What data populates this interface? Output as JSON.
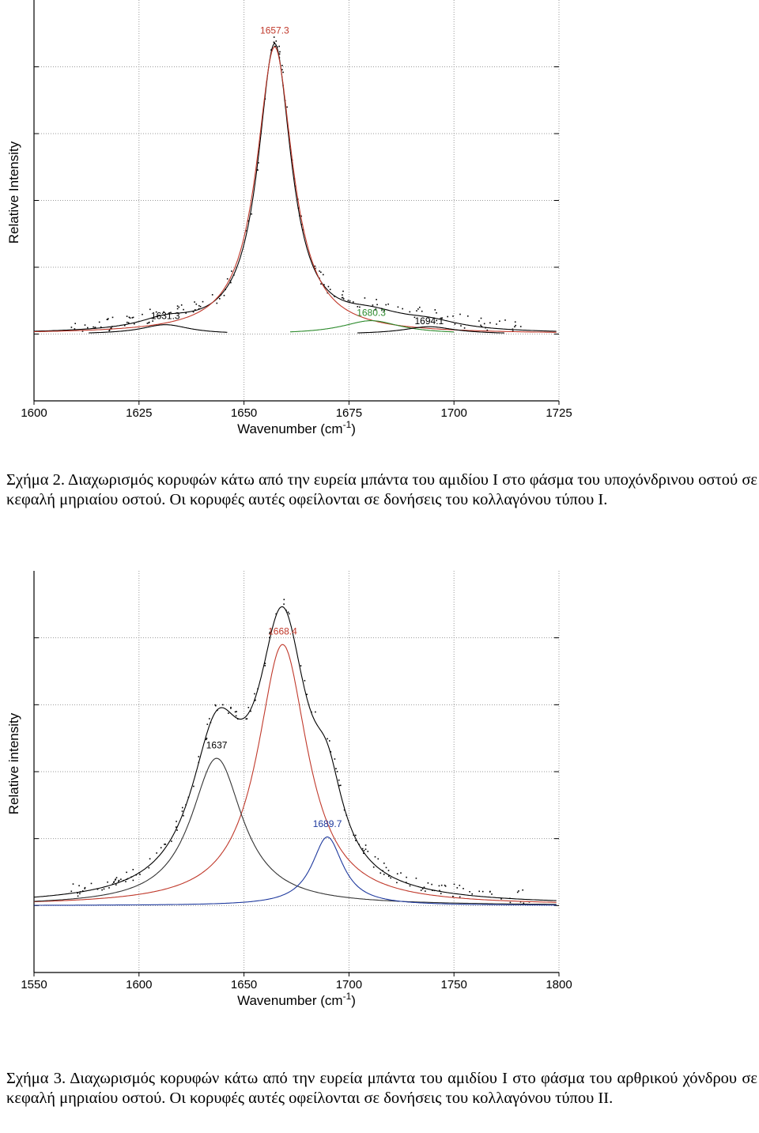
{
  "chart_data": [
    {
      "type": "line",
      "title": "",
      "xlabel": "Wavenumber (cm",
      "xlabel_sup": "-1",
      "xlabel_end": ")",
      "ylabel": "Relative Intensity",
      "xlim": [
        1600,
        1725
      ],
      "ylim": [
        -0.2,
        1.0
      ],
      "xticks": [
        1600,
        1625,
        1650,
        1675,
        1700,
        1725
      ],
      "grid": true,
      "series": [
        {
          "name": "",
          "color": "#000000",
          "role": "sum",
          "peaks": [
            [
              1631.3,
              0.028,
              8.0
            ],
            [
              1657.3,
              0.86,
              4.8
            ],
            [
              1680.3,
              0.04,
              10.0
            ],
            [
              1694.1,
              0.022,
              9.0
            ]
          ],
          "offset": 0.0
        },
        {
          "name": "",
          "color": "#c0392b",
          "role": "component",
          "peaks": [
            [
              1657.3,
              0.86,
              5.2
            ]
          ],
          "offset": 0.0
        },
        {
          "name": "",
          "color": "#000000",
          "role": "component",
          "peaks": [
            [
              1631.3,
              0.028,
              7.0
            ]
          ],
          "range": [
            1613,
            1646
          ]
        },
        {
          "name": "",
          "color": "#2e8b2e",
          "role": "component",
          "peaks": [
            [
              1680.3,
              0.04,
              8.5
            ]
          ],
          "range": [
            1661,
            1700
          ]
        },
        {
          "name": "",
          "color": "#000000",
          "role": "component",
          "peaks": [
            [
              1694.1,
              0.022,
              7.5
            ]
          ],
          "range": [
            1677,
            1712
          ]
        }
      ],
      "annotations": [
        {
          "text": "1657.3",
          "x": 1657.3,
          "y": 0.9,
          "color": "#c0392b"
        },
        {
          "text": "1631.3",
          "x": 1631.3,
          "y": 0.045,
          "color": "#000000"
        },
        {
          "text": "1680.3",
          "x": 1680.3,
          "y": 0.055,
          "color": "#2e8b2e"
        },
        {
          "text": "1694.1",
          "x": 1694.1,
          "y": 0.03,
          "color": "#000000"
        }
      ]
    },
    {
      "type": "line",
      "title": "",
      "xlabel": "Wavenumber (cm",
      "xlabel_sup": "-1",
      "xlabel_end": ")",
      "ylabel": "Relative intensity",
      "xlim": [
        1550,
        1800
      ],
      "ylim": [
        -0.2,
        1.0
      ],
      "xticks": [
        1550,
        1600,
        1650,
        1700,
        1750,
        1800
      ],
      "grid": true,
      "series": [
        {
          "name": "",
          "color": "#000000",
          "role": "sum",
          "peaks": [
            [
              1637,
              0.44,
              15.0
            ],
            [
              1668.4,
              0.78,
              14.5
            ],
            [
              1689.7,
              0.205,
              9.0
            ]
          ],
          "offset": 0.0
        },
        {
          "name": "",
          "color": "#c0392b",
          "role": "component",
          "peaks": [
            [
              1668.4,
              0.78,
              14.5
            ]
          ],
          "offset": 0.0
        },
        {
          "name": "",
          "color": "#333333",
          "role": "component",
          "peaks": [
            [
              1637,
              0.44,
              15.0
            ]
          ],
          "offset": 0.0
        },
        {
          "name": "",
          "color": "#1f3a9e",
          "role": "component",
          "peaks": [
            [
              1689.7,
              0.205,
              9.0
            ]
          ],
          "offset": 0.0
        }
      ],
      "annotations": [
        {
          "text": "1668.4",
          "x": 1668.4,
          "y": 0.81,
          "color": "#c0392b"
        },
        {
          "text": "1637",
          "x": 1637,
          "y": 0.47,
          "color": "#000000"
        },
        {
          "text": "1689.7",
          "x": 1689.7,
          "y": 0.235,
          "color": "#1f3a9e"
        }
      ]
    }
  ],
  "captions": {
    "fig2": "Σχήμα 2. Διαχωρισμός κορυφών κάτω από την ευρεία μπάντα του αμιδίου Ι στο φάσμα του υποχόνδρινου οστού σε κεφαλή μηριαίου οστού. Οι κορυφές αυτές οφείλονται σε δονήσεις του κολλαγόνου τύπου Ι.",
    "fig3": "Σχήμα 3. Διαχωρισμός κορυφών κάτω από την ευρεία μπάντα του αμιδίου Ι στο φάσμα του αρθρικού χόνδρου σε κεφαλή μηριαίου οστού. Οι κορυφές αυτές οφείλονται σε δονήσεις του κολλαγόνου τύπου ΙΙ."
  }
}
